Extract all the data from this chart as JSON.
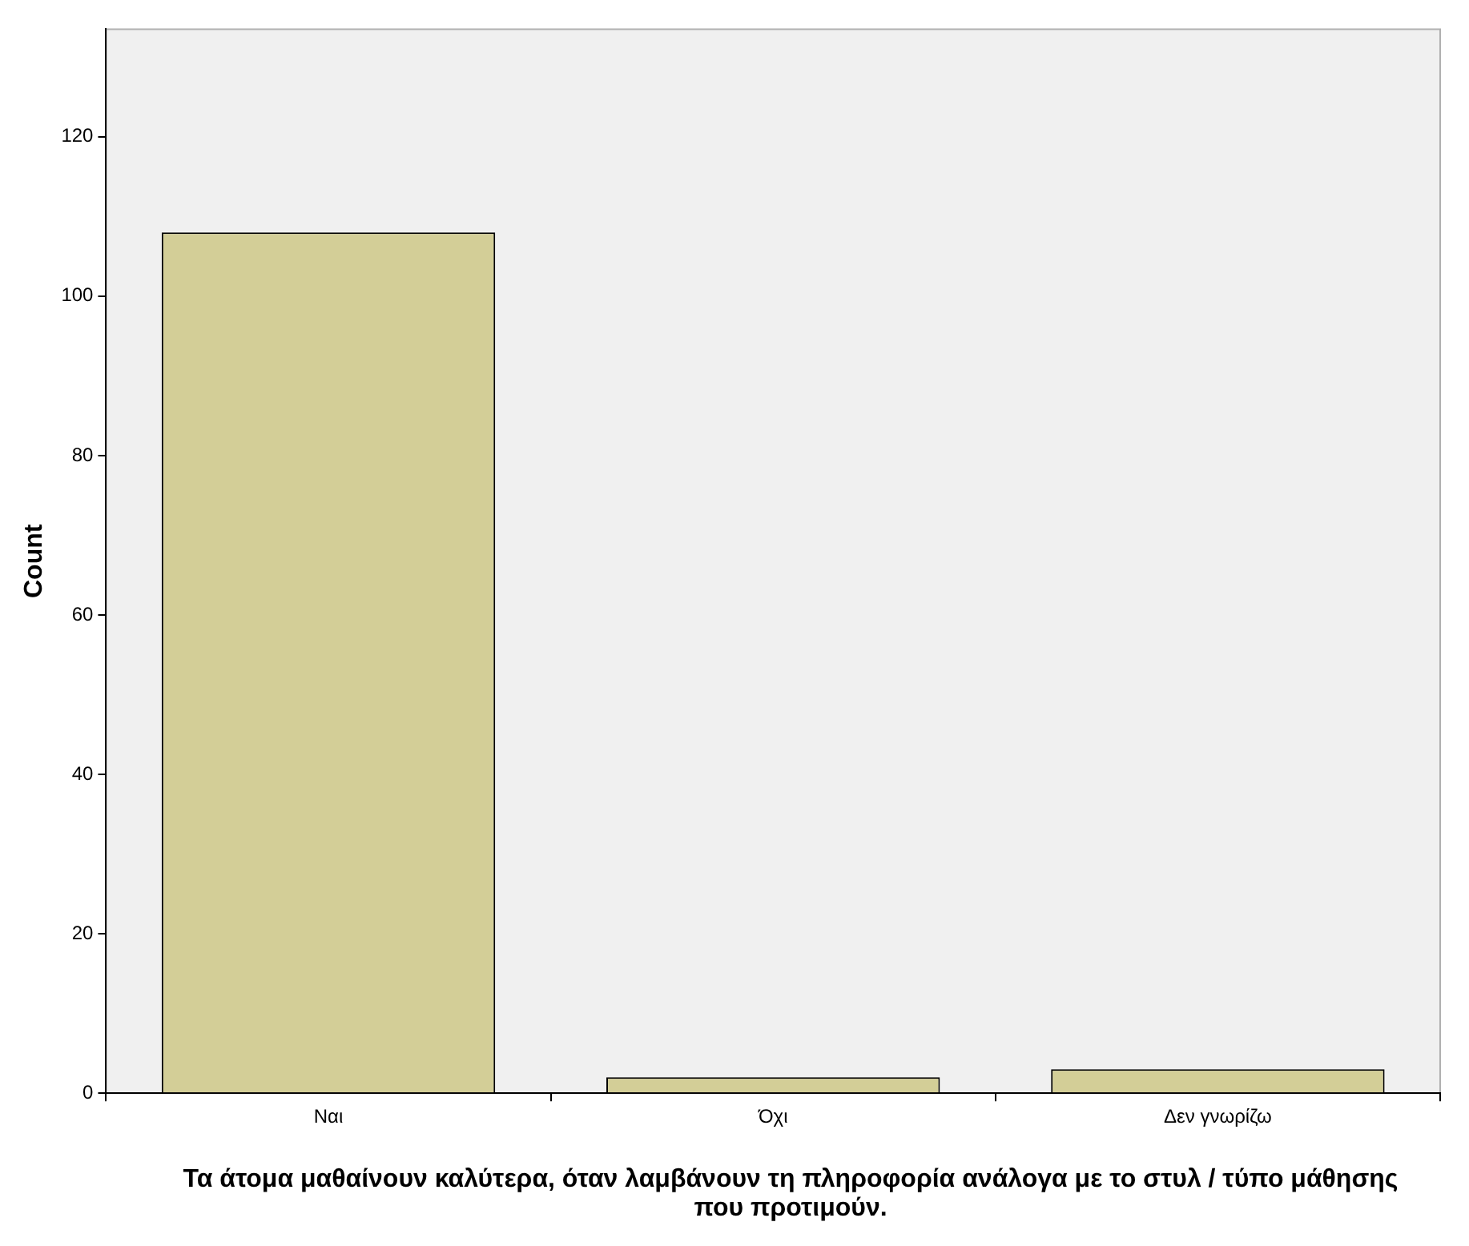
{
  "chart_data": {
    "type": "bar",
    "xlabel": "Τα άτομα μαθαίνουν καλύτερα, όταν λαμβάνουν τη πληροφορία ανάλογα με το στυλ / τύπο μάθησης που προτιμούν.",
    "ylabel": "Count",
    "categories": [
      "Ναι",
      "Όχι",
      "Δεν γνωρίζω"
    ],
    "values": [
      108,
      2,
      3
    ],
    "color": "#d3ce97",
    "ylim": [
      0,
      133.5
    ],
    "yticks": [
      0,
      20,
      40,
      60,
      80,
      100,
      120
    ],
    "grid": false,
    "legend": false
  }
}
